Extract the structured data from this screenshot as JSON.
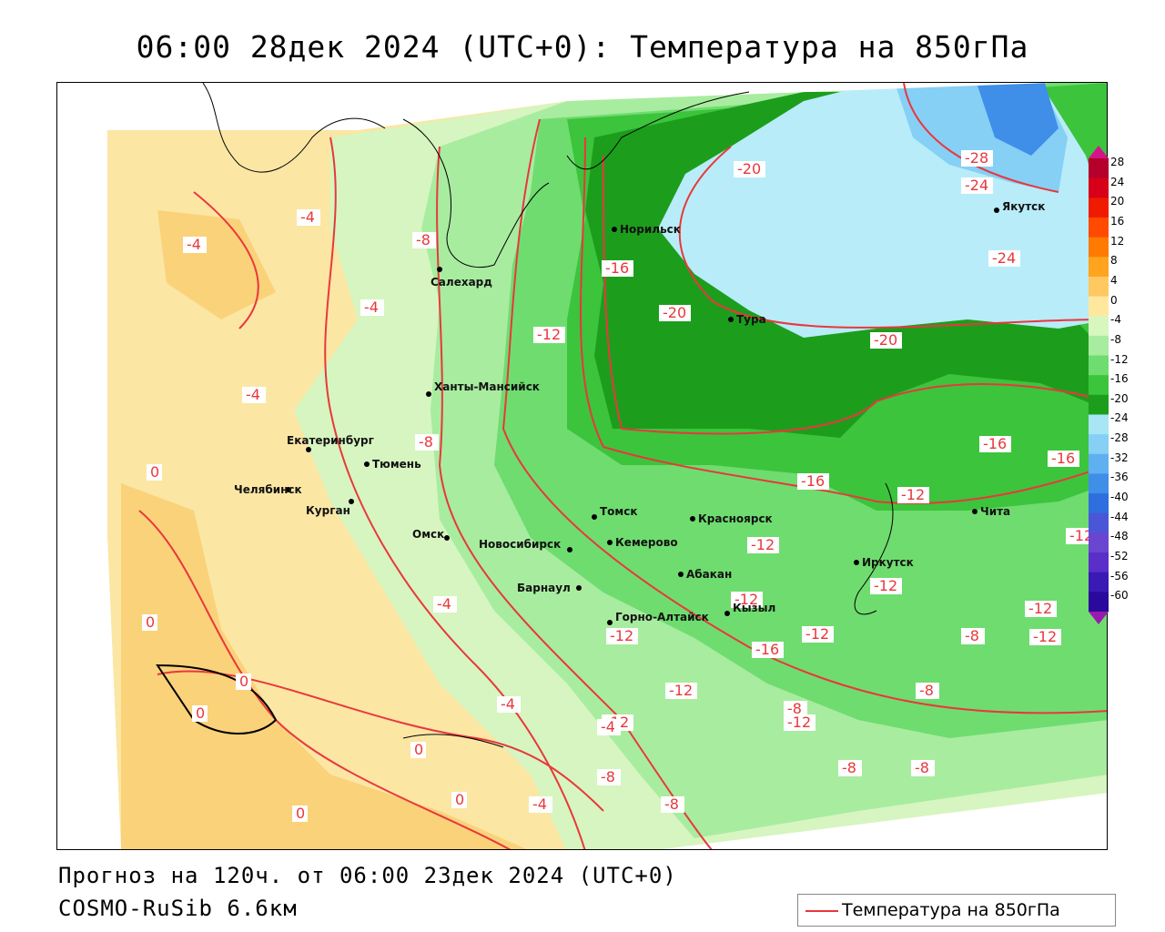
{
  "title": "06:00 28дек 2024 (UTC+0): Температура на 850гПа",
  "footer": {
    "forecast": "Прогноз на 120ч. от 06:00 23дек 2024 (UTC+0)",
    "model": "COSMO-RuSib 6.6км"
  },
  "legend": {
    "label": "Температура на 850гПа",
    "color": "#e8383c"
  },
  "colorbar": {
    "labels": [
      "28",
      "24",
      "20",
      "16",
      "12",
      "8",
      "4",
      "0",
      "-4",
      "-8",
      "-12",
      "-16",
      "-20",
      "-24",
      "-28",
      "-32",
      "-36",
      "-40",
      "-44",
      "-48",
      "-52",
      "-56",
      "-60"
    ],
    "colors": [
      "#b4002a",
      "#d80018",
      "#f01a00",
      "#ff4a00",
      "#ff7a00",
      "#ffa41c",
      "#ffc860",
      "#ffe79e",
      "#d8f6c0",
      "#a8eca0",
      "#6fdc6f",
      "#3cc43c",
      "#1c9e1c",
      "#a8e6f6",
      "#86cff5",
      "#5fb0f0",
      "#3f8ee8",
      "#2e6ede",
      "#4a56d8",
      "#6a46d0",
      "#5a2ec8",
      "#3a1ab4",
      "#2a0a9c"
    ]
  },
  "cities": [
    {
      "name": "Норильск"
    },
    {
      "name": "Салехард"
    },
    {
      "name": "Тура"
    },
    {
      "name": "Якутск"
    },
    {
      "name": "Ханты-Мансийск"
    },
    {
      "name": "Екатеринбург"
    },
    {
      "name": "Тюмень"
    },
    {
      "name": "Челябинск"
    },
    {
      "name": "Курган"
    },
    {
      "name": "Омск"
    },
    {
      "name": "Томск"
    },
    {
      "name": "Новосибирск"
    },
    {
      "name": "Кемерово"
    },
    {
      "name": "Красноярск"
    },
    {
      "name": "Барнаул"
    },
    {
      "name": "Абакан"
    },
    {
      "name": "Иркутск"
    },
    {
      "name": "Чита"
    },
    {
      "name": "Горно-Алтайск"
    },
    {
      "name": "Кызыл"
    }
  ],
  "isotherm_labels": [
    "-4",
    "-4",
    "-8",
    "-4",
    "-4",
    "-8",
    "-12",
    "-16",
    "-20",
    "-20",
    "-20",
    "-28",
    "-24",
    "-24",
    "-16",
    "-16",
    "-16",
    "-12",
    "-12",
    "-12",
    "-12",
    "-12",
    "-12",
    "-12",
    "-16",
    "-12",
    "-8",
    "-12",
    "-8",
    "-12",
    "-12",
    "-8",
    "-8",
    "-12",
    "-8",
    "-8",
    "-8",
    "-4",
    "-4",
    "-4",
    "-4",
    "0",
    "0",
    "0",
    "0",
    "0",
    "0",
    "0"
  ]
}
